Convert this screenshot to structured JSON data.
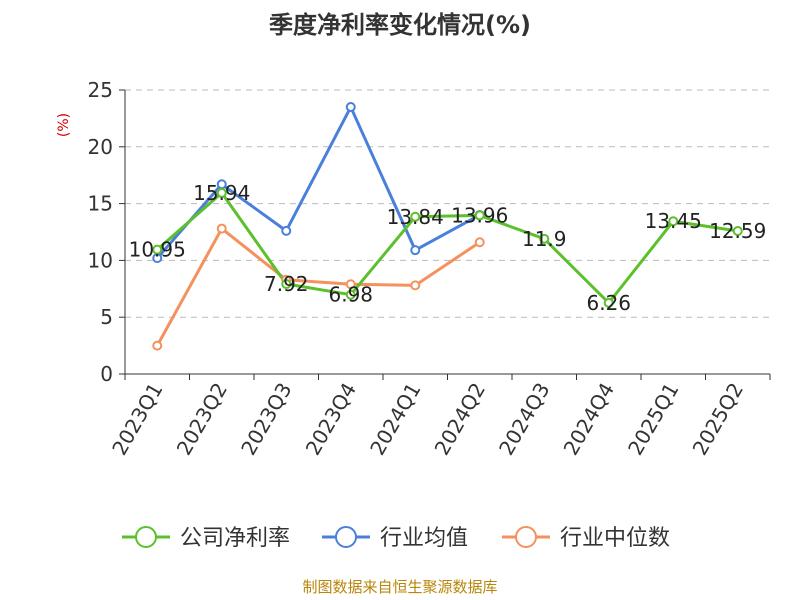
{
  "chart_data": {
    "type": "line",
    "title": "季度净利率变化情况(%)",
    "ylabel": "(%)",
    "xlabel": "",
    "ylim": [
      0,
      25
    ],
    "yticks": [
      0,
      5,
      10,
      15,
      20,
      25
    ],
    "categories": [
      "2023Q1",
      "2023Q2",
      "2023Q3",
      "2023Q4",
      "2024Q1",
      "2024Q2",
      "2024Q3",
      "2024Q4",
      "2025Q1",
      "2025Q2"
    ],
    "grid": true,
    "legend_position": "bottom",
    "series": [
      {
        "name": "公司净利率",
        "color": "#5cc02c",
        "values": [
          10.95,
          15.94,
          7.92,
          6.98,
          13.84,
          13.96,
          11.9,
          6.26,
          13.45,
          12.59
        ],
        "labels": [
          "10.95",
          "15.94",
          "7.92",
          "6.98",
          "13.84",
          "13.96",
          "11.9",
          "6.26",
          "13.45",
          "12.59"
        ]
      },
      {
        "name": "行业均值",
        "color": "#4a7fdb",
        "values": [
          10.2,
          16.7,
          12.6,
          23.5,
          10.9,
          14.0,
          null,
          null,
          null,
          null
        ]
      },
      {
        "name": "行业中位数",
        "color": "#f4915d",
        "values": [
          2.5,
          12.8,
          8.3,
          7.9,
          7.8,
          11.6,
          null,
          null,
          null,
          null
        ]
      }
    ]
  },
  "source": "制图数据来自恒生聚源数据库"
}
